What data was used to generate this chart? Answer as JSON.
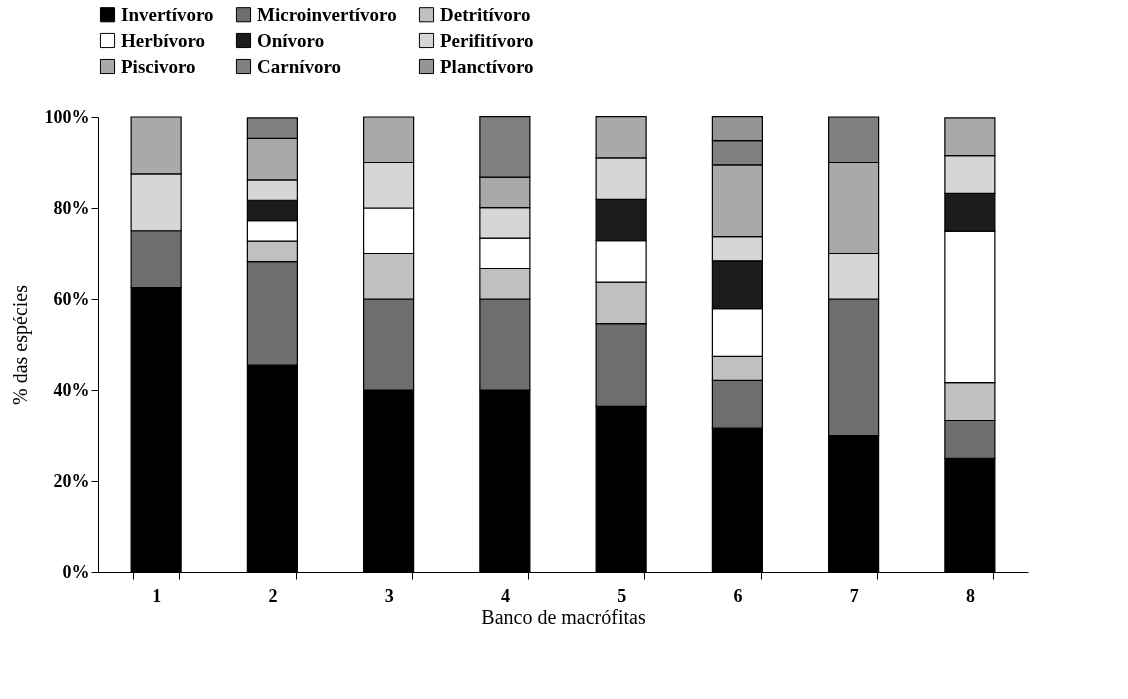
{
  "chart_data": {
    "type": "bar",
    "stacked": true,
    "xlabel": "Banco de macrófitas",
    "ylabel": "% das espécies",
    "categories": [
      "1",
      "2",
      "3",
      "4",
      "5",
      "6",
      "7",
      "8"
    ],
    "series": [
      {
        "name": "Invertívoro",
        "color": "#000000",
        "values": [
          62.5,
          45.5,
          40,
          40,
          36.4,
          31.6,
          30,
          25
        ]
      },
      {
        "name": "Microinvertívoro",
        "color": "#6e6e6e",
        "values": [
          12.5,
          22.7,
          20,
          20,
          18.2,
          10.5,
          30,
          8.3
        ]
      },
      {
        "name": "Detritívoro",
        "color": "#c0c0c0",
        "values": [
          null,
          4.5,
          10,
          6.7,
          9.1,
          5.3,
          null,
          8.3
        ]
      },
      {
        "name": "Herbívoro",
        "color": "#ffffff",
        "values": [
          null,
          4.5,
          10,
          6.7,
          9.1,
          10.5,
          null,
          33.3
        ]
      },
      {
        "name": "Onívoro",
        "color": "#1c1c1c",
        "values": [
          null,
          4.5,
          null,
          null,
          9.1,
          10.5,
          null,
          8.3
        ]
      },
      {
        "name": "Perifitívoro",
        "color": "#d6d6d6",
        "values": [
          12.5,
          4.5,
          10,
          6.7,
          9.1,
          5.3,
          10,
          8.3
        ]
      },
      {
        "name": "Piscivoro",
        "color": "#a9a9a9",
        "values": [
          12.5,
          9.1,
          10,
          6.7,
          9.1,
          15.8,
          20,
          8.3
        ]
      },
      {
        "name": "Carnívoro",
        "color": "#808080",
        "values": [
          null,
          4.5,
          null,
          13.3,
          null,
          5.3,
          10,
          null
        ]
      },
      {
        "name": "Planctívoro",
        "color": "#959595",
        "values": [
          null,
          null,
          null,
          null,
          null,
          5.3,
          null,
          null
        ]
      }
    ],
    "ylim": [
      0,
      100
    ],
    "yticks": [
      {
        "value": 0,
        "label": "0%"
      },
      {
        "value": 20,
        "label": "20%"
      },
      {
        "value": 40,
        "label": "40%"
      },
      {
        "value": 60,
        "label": "60%"
      },
      {
        "value": 80,
        "label": "80%"
      },
      {
        "value": 100,
        "label": "100%"
      }
    ],
    "grid": false,
    "legend": "top"
  }
}
